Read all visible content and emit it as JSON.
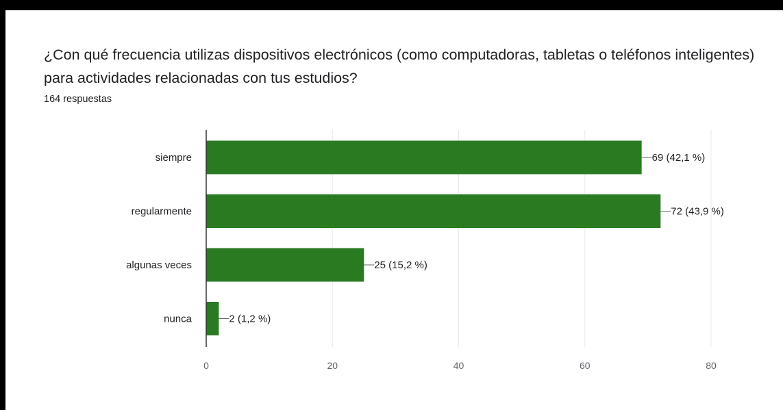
{
  "header": {
    "question": "¿Con qué frecuencia utilizas dispositivos electrónicos (como computadoras, tabletas o teléfonos inteligentes) para actividades relacionadas con tus estudios?",
    "responses": "164 respuestas"
  },
  "chart_data": {
    "type": "bar",
    "orientation": "horizontal",
    "categories": [
      "siempre",
      "regularmente",
      "algunas veces",
      "nunca"
    ],
    "values": [
      69,
      72,
      25,
      2
    ],
    "value_labels": [
      "69 (42,1 %)",
      "72 (43,9 %)",
      "25 (15,2 %)",
      "2 (1,2 %)"
    ],
    "xlim": [
      0,
      80
    ],
    "xticks": [
      0,
      20,
      40,
      60,
      80
    ],
    "grid": true,
    "legend": "none",
    "bar_color": "#2a7a22"
  }
}
